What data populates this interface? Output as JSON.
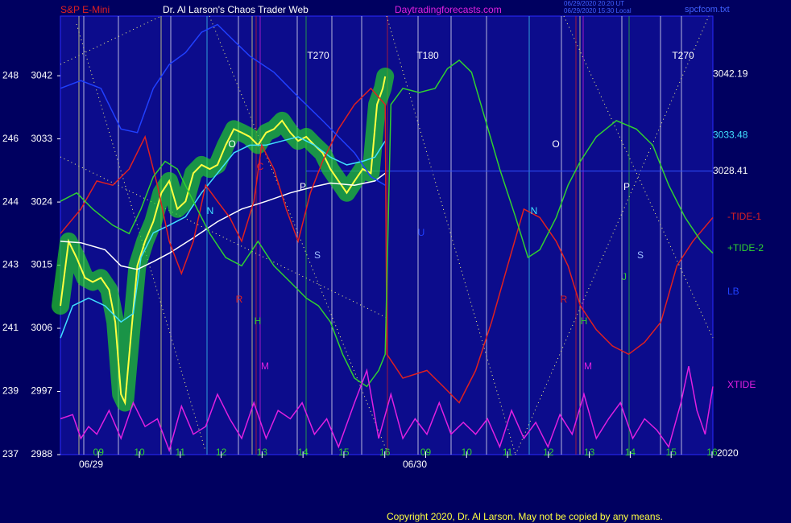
{
  "chart_data": {
    "type": "line",
    "header": {
      "left": "S&P E-Mini",
      "center": "Dr. Al Larson's Chaos Trader Web",
      "site": "Daytradingforecasts.com",
      "stamp1": "06/29/2020 20:20 UT",
      "stamp2": "06/29/2020 15:30 Local",
      "file": "spcfcom.txt"
    },
    "footer": "Copyright 2020, Dr. Al Larson. May not be copied by any means.",
    "dates": [
      "06/29",
      "06/30"
    ],
    "year": "2020",
    "xlim": [
      -0.93,
      15.02
    ],
    "xticks": [
      {
        "value": 0,
        "label": "09"
      },
      {
        "value": 1,
        "label": "10"
      },
      {
        "value": 2,
        "label": "11"
      },
      {
        "value": 3,
        "label": "12"
      },
      {
        "value": 4,
        "label": "13"
      },
      {
        "value": 5,
        "label": "14"
      },
      {
        "value": 6,
        "label": "15"
      },
      {
        "value": 7,
        "label": "16"
      },
      {
        "value": 8,
        "label": "09"
      },
      {
        "value": 9,
        "label": "10"
      },
      {
        "value": 10,
        "label": "11"
      },
      {
        "value": 11,
        "label": "12"
      },
      {
        "value": 12,
        "label": "13"
      },
      {
        "value": 13,
        "label": "14"
      },
      {
        "value": 14,
        "label": "15"
      },
      {
        "value": 15,
        "label": "16"
      }
    ],
    "ylim": [
      2988,
      3050.5
    ],
    "yticks": [
      {
        "value": 3042,
        "label": "248 3042"
      },
      {
        "value": 3033,
        "label": "246 3033"
      },
      {
        "value": 3024,
        "label": "244 3024"
      },
      {
        "value": 3015,
        "label": "243 3015"
      },
      {
        "value": 3006,
        "label": "241 3006"
      },
      {
        "value": 2997,
        "label": "239 2997"
      },
      {
        "value": 2988,
        "label": "237 2988"
      }
    ],
    "levels": [
      {
        "value": 3042.19,
        "color": "#ffffff"
      },
      {
        "value": 3033.48,
        "color": "#40e0ff"
      },
      {
        "value": 3028.41,
        "color": "#ffffff"
      }
    ],
    "annotations": [
      "T270",
      "T180",
      "T270",
      "N",
      "R",
      "H",
      "M",
      "S",
      "C",
      "O",
      "P",
      "N",
      "R",
      "H",
      "M",
      "S",
      "O",
      "P",
      "J",
      "U"
    ],
    "series": [
      {
        "name": "Price",
        "color": "#ffff40",
        "glow": true,
        "x": [
          -0.93,
          -0.73,
          -0.53,
          -0.33,
          -0.14,
          0.06,
          0.26,
          0.41,
          0.55,
          0.65,
          0.79,
          0.95,
          1.14,
          1.34,
          1.54,
          1.73,
          1.93,
          2.13,
          2.32,
          2.52,
          2.72,
          2.91,
          3.11,
          3.31,
          3.5,
          3.7,
          3.9,
          4.1,
          4.29,
          4.49,
          4.69,
          4.88,
          5.08,
          5.28,
          5.48,
          5.67,
          5.87,
          6.07,
          6.26,
          6.46,
          6.66,
          6.81,
          6.95,
          7.01
        ],
        "values": [
          3009.2,
          3018.4,
          3016,
          3013.2,
          3012.6,
          3013.2,
          3011.5,
          3006.9,
          2996.6,
          2995.4,
          3004.6,
          3014.9,
          3018.4,
          3021.2,
          3025.3,
          3027,
          3023,
          3024.1,
          3028.1,
          3029.3,
          3028.7,
          3029.3,
          3032.1,
          3034.4,
          3033.9,
          3033.3,
          3032.1,
          3033.9,
          3034.4,
          3035.6,
          3033.9,
          3032.7,
          3033.3,
          3032.1,
          3031,
          3028.7,
          3027,
          3025.3,
          3027,
          3028.7,
          3028.1,
          3037.9,
          3040.2,
          3041.9
        ]
      },
      {
        "name": "MA fast",
        "color": "#40e0ff",
        "x": [
          -0.93,
          -0.63,
          -0.24,
          0.16,
          0.55,
          0.85,
          1.04,
          1.34,
          1.73,
          2.13,
          2.52,
          2.91,
          3.31,
          3.7,
          4.1,
          4.49,
          4.88,
          5.28,
          5.67,
          6.07,
          6.46,
          6.76,
          7.01
        ],
        "values": [
          3004.6,
          3009.2,
          3010.3,
          3009.2,
          3006.9,
          3008.1,
          3016.1,
          3019.6,
          3020.7,
          3021.9,
          3025.3,
          3028.1,
          3031,
          3032.1,
          3032.1,
          3032.7,
          3033.3,
          3032.1,
          3030.4,
          3029.3,
          3029.8,
          3030.4,
          3032.7
        ]
      },
      {
        "name": "MA slow",
        "color": "#ffffff",
        "x": [
          -0.93,
          -0.43,
          0.16,
          0.55,
          0.95,
          1.34,
          1.73,
          2.32,
          2.91,
          3.5,
          4.1,
          4.69,
          5.28,
          5.67,
          6.26,
          6.76,
          7.01
        ],
        "values": [
          3018.4,
          3018.2,
          3017.2,
          3014.9,
          3014.4,
          3015.5,
          3016.7,
          3018.9,
          3021.2,
          3023,
          3024.1,
          3025.3,
          3026.2,
          3026.7,
          3026.4,
          3027,
          3028.1
        ]
      },
      {
        "name": "-TIDE-1",
        "color": "#e02020",
        "legend": true,
        "x": [
          -0.93,
          -0.43,
          -0.04,
          0.35,
          0.75,
          1.14,
          1.44,
          1.73,
          2.03,
          2.32,
          2.62,
          2.91,
          3.21,
          3.5,
          3.8,
          3.99,
          4.29,
          4.59,
          4.88,
          5.18,
          5.48,
          5.87,
          6.26,
          6.66,
          7.01,
          7.05,
          7.44,
          8.03,
          8.43,
          8.82,
          9.22,
          9.61,
          10.0,
          10.4,
          10.79,
          11.19,
          11.48,
          11.78,
          12.17,
          12.56,
          12.96,
          13.35,
          13.75,
          14.14,
          14.53,
          15.02
        ],
        "values": [
          3019.5,
          3023,
          3027,
          3026.4,
          3028.7,
          3033.3,
          3026.4,
          3018.4,
          3013.8,
          3018.4,
          3026.4,
          3024.1,
          3021.8,
          3018.4,
          3024.1,
          3032.1,
          3028.7,
          3023,
          3018.4,
          3025.3,
          3029.8,
          3034.4,
          3037.9,
          3040.2,
          3037.9,
          3002.3,
          2998.9,
          3000,
          2997.7,
          2995.4,
          3000,
          3006.9,
          3014.9,
          3023,
          3021.8,
          3018.4,
          3014.9,
          3009.2,
          3005.8,
          3003.5,
          3002.3,
          3004,
          3006.9,
          3014.9,
          3018.4,
          3021.8
        ]
      },
      {
        "name": "+TIDE-2",
        "color": "#30d030",
        "legend": true,
        "x": [
          -0.93,
          -0.53,
          -0.14,
          0.35,
          0.75,
          1.04,
          1.34,
          1.63,
          1.93,
          2.32,
          2.72,
          3.11,
          3.5,
          3.9,
          4.29,
          4.69,
          5.08,
          5.38,
          5.67,
          5.97,
          6.26,
          6.56,
          6.85,
          7.01,
          7.15,
          7.44,
          7.84,
          8.23,
          8.53,
          8.82,
          9.12,
          9.41,
          9.81,
          10.2,
          10.5,
          10.79,
          11.19,
          11.48,
          11.78,
          12.17,
          12.66,
          13.15,
          13.55,
          13.94,
          14.34,
          14.73,
          15.02
        ],
        "values": [
          3024.1,
          3025.3,
          3023,
          3020.7,
          3019.5,
          3023,
          3027.6,
          3029.8,
          3028.7,
          3024.1,
          3019.5,
          3016.1,
          3014.9,
          3018.4,
          3014.9,
          3012.6,
          3010.3,
          3009.2,
          3006.9,
          3002.3,
          2998.9,
          2997.7,
          3000,
          3002.3,
          3037.9,
          3040.2,
          3039.6,
          3040.2,
          3043,
          3044.2,
          3042.5,
          3036.7,
          3028.7,
          3021.8,
          3016.1,
          3017.2,
          3021.8,
          3026.4,
          3029.8,
          3033.3,
          3035.6,
          3034.4,
          3032.1,
          3026.4,
          3021.8,
          3018.4,
          3016.7
        ]
      },
      {
        "name": "LB",
        "color": "#2040ff",
        "legend": true,
        "x": [
          -0.93,
          -0.43,
          0.06,
          0.55,
          0.95,
          1.34,
          1.73,
          2.13,
          2.52,
          2.91,
          3.31,
          3.7,
          4.29,
          4.88,
          5.48,
          5.87,
          6.26,
          6.66,
          7.01
        ],
        "values": [
          3040.2,
          3041.3,
          3040.2,
          3034.4,
          3033.9,
          3040.2,
          3043.6,
          3045.3,
          3048.2,
          3049.3,
          3047,
          3044.8,
          3042.5,
          3039,
          3035.6,
          3033.3,
          3031,
          3027.6,
          3026.4
        ]
      },
      {
        "name": "XTIDE",
        "color": "#e020e0",
        "legend": true,
        "x": [
          -0.93,
          -0.63,
          -0.43,
          -0.24,
          -0.04,
          0.26,
          0.55,
          0.85,
          1.14,
          1.44,
          1.73,
          2.03,
          2.32,
          2.62,
          2.91,
          3.21,
          3.5,
          3.8,
          4.1,
          4.39,
          4.69,
          4.98,
          5.28,
          5.58,
          5.87,
          6.26,
          6.56,
          6.85,
          7.15,
          7.44,
          7.74,
          8.03,
          8.33,
          8.62,
          8.92,
          9.22,
          9.51,
          9.81,
          10.1,
          10.4,
          10.69,
          10.99,
          11.28,
          11.58,
          11.87,
          12.17,
          12.47,
          12.76,
          13.06,
          13.35,
          13.65,
          13.94,
          14.24,
          14.43,
          14.63,
          14.83,
          15.02
        ],
        "values": [
          2993.1,
          2993.7,
          2990.3,
          2992,
          2990.9,
          2994.3,
          2990.3,
          2995.4,
          2992,
          2993.1,
          2988.6,
          2994.9,
          2990.9,
          2992,
          2996.6,
          2993.1,
          2990.3,
          2995.4,
          2990.3,
          2994.3,
          2993.1,
          2995.4,
          2990.9,
          2993.1,
          2989.1,
          2995.4,
          3000,
          2990.3,
          2996.6,
          2990.3,
          2993.1,
          2990.9,
          2995.4,
          2990.9,
          2992.6,
          2990.9,
          2993.1,
          2989.1,
          2994.3,
          2990.3,
          2992.6,
          2989.1,
          2993.7,
          2990.9,
          2996.6,
          2990.3,
          2993.1,
          2995.4,
          2990.3,
          2993.1,
          2991.5,
          2989.1,
          2995.4,
          3000.6,
          2994.3,
          2990.9,
          2997.7
        ]
      }
    ]
  }
}
